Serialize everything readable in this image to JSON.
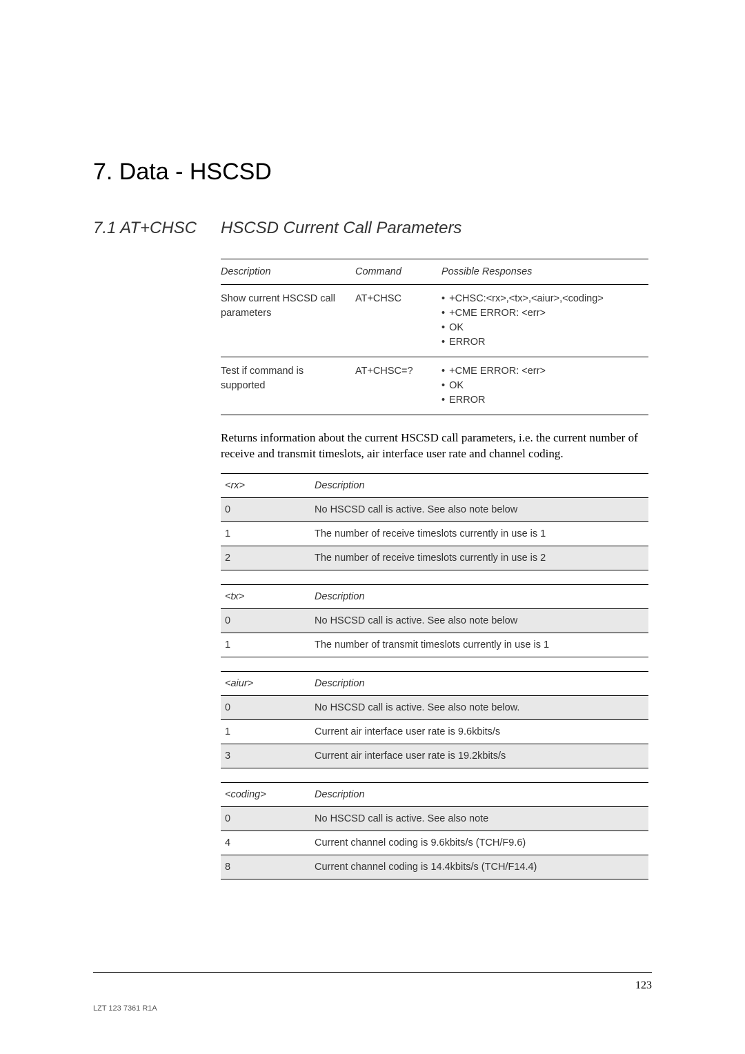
{
  "chapter": {
    "title": "7. Data - HSCSD"
  },
  "section": {
    "num": "7.1 AT+CHSC",
    "title": "HSCSD Current Call Parameters"
  },
  "cmd_table": {
    "headers": [
      "Description",
      "Command",
      "Possible Responses"
    ],
    "rows": [
      {
        "desc": "Show current HSCSD call parameters",
        "cmd": "AT+CHSC",
        "resp": [
          "+CHSC:<rx>,<tx>,<aiur>,<coding>",
          "+CME ERROR: <err>",
          "OK",
          "ERROR"
        ]
      },
      {
        "desc": "Test if command is supported",
        "cmd": "AT+CHSC=?",
        "resp": [
          "+CME ERROR: <err>",
          "OK",
          "ERROR"
        ]
      }
    ]
  },
  "body": "Returns information about the current HSCSD call parameters, i.e. the current number of receive and transmit timeslots, air interface user rate and channel coding.",
  "rx_table": {
    "param": "<rx>",
    "header": "Description",
    "rows": [
      {
        "v": "0",
        "d": "No HSCSD call is active. See also note below",
        "shaded": true
      },
      {
        "v": "1",
        "d": "The number of receive timeslots currently in use is 1",
        "shaded": false
      },
      {
        "v": "2",
        "d": "The number of receive timeslots currently in use is 2",
        "shaded": true
      }
    ]
  },
  "tx_table": {
    "param": "<tx>",
    "header": "Description",
    "rows": [
      {
        "v": "0",
        "d": "No HSCSD call is active. See also note below",
        "shaded": true
      },
      {
        "v": "1",
        "d": "The number of transmit timeslots currently in use is 1",
        "shaded": false
      }
    ]
  },
  "aiur_table": {
    "param": "<aiur>",
    "header": "Description",
    "rows": [
      {
        "v": "0",
        "d": "No HSCSD call is active. See also note below.",
        "shaded": true
      },
      {
        "v": "1",
        "d": "Current air interface user rate is 9.6kbits/s",
        "shaded": false
      },
      {
        "v": "3",
        "d": "Current air interface user rate is 19.2kbits/s",
        "shaded": true
      }
    ]
  },
  "coding_table": {
    "param": "<coding>",
    "header": "Description",
    "rows": [
      {
        "v": "0",
        "d": "No HSCSD call is active. See also note",
        "shaded": true
      },
      {
        "v": "4",
        "d": "Current channel coding is 9.6kbits/s (TCH/F9.6)",
        "shaded": false
      },
      {
        "v": "8",
        "d": "Current channel coding is 14.4kbits/s (TCH/F14.4)",
        "shaded": true
      }
    ]
  },
  "footer": {
    "left": "LZT 123 7361 R1A",
    "page": "123"
  },
  "colors": {
    "shaded_bg": "#e8e8e8",
    "text": "#000000",
    "soft_text": "#333333",
    "rule": "#000000"
  }
}
